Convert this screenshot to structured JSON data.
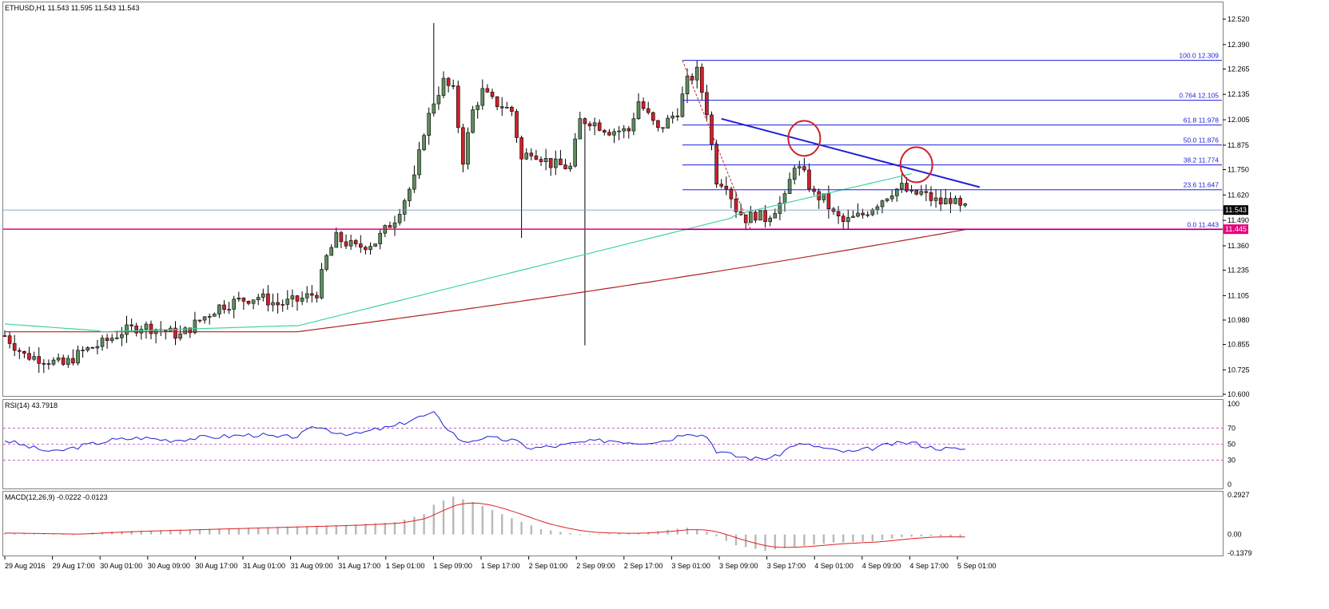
{
  "main_header": "ETHUSD,H1  11.543 11.595 11.543 11.543",
  "rsi_header": "RSI(14) 43.7918",
  "macd_header": "MACD(12,26,9) -0.0222 -0.0123",
  "colors": {
    "bull": "#5e8c5e",
    "bear": "#d0202a",
    "ma_fast": "#3fd4a0",
    "ma_slow": "#b22222",
    "fib": "#1f1fd8",
    "trend": "#1f1fd8",
    "support": "#e6007e",
    "circle": "#d0202a",
    "rsi": "#1f1fd8",
    "macd_hist": "#b8b8b8",
    "macd_signal": "#e02020"
  },
  "chart_data": [
    {
      "name": "price",
      "type": "candlestick",
      "ylim": [
        10.6,
        12.59
      ],
      "y_ticks": [
        "12.520",
        "12.390",
        "12.265",
        "12.135",
        "12.005",
        "11.875",
        "11.750",
        "11.620",
        "11.490",
        "11.360",
        "11.235",
        "11.105",
        "10.980",
        "10.855",
        "10.725",
        "10.600"
      ],
      "x_tick_labels": [
        "29 Aug 2016",
        "29 Aug 17:00",
        "30 Aug 01:00",
        "30 Aug 09:00",
        "30 Aug 17:00",
        "31 Aug 01:00",
        "31 Aug 09:00",
        "31 Aug 17:00",
        "1 Sep 01:00",
        "1 Sep 09:00",
        "1 Sep 17:00",
        "2 Sep 01:00",
        "2 Sep 09:00",
        "2 Sep 17:00",
        "3 Sep 01:00",
        "3 Sep 09:00",
        "3 Sep 17:00",
        "4 Sep 01:00",
        "4 Sep 09:00",
        "4 Sep 17:00",
        "5 Sep 01:00"
      ],
      "current_price": "11.543",
      "support_level": "11.445",
      "fib_levels": [
        {
          "pct": "100.0",
          "price": "12.309"
        },
        {
          "pct": "0.764",
          "price": "12.105"
        },
        {
          "pct": "61.8",
          "price": "11.978"
        },
        {
          "pct": "50.0",
          "price": "11.876"
        },
        {
          "pct": "38.2",
          "price": "11.774"
        },
        {
          "pct": "23.6",
          "price": "11.647"
        },
        {
          "pct": "0.0",
          "price": "11.443"
        }
      ],
      "trend_line": [
        [
          12.01,
          11.66
        ]
      ],
      "moving_averages": [
        "fast",
        "slow"
      ],
      "grid": false
    },
    {
      "name": "rsi",
      "type": "line",
      "ylim": [
        0,
        100
      ],
      "y_ticks": [
        "100",
        "70",
        "50",
        "30",
        "0"
      ],
      "levels": [
        70,
        50,
        30
      ],
      "last_value": 43.7918
    },
    {
      "name": "macd",
      "type": "bar",
      "y_ticks": [
        "0.2927",
        "0.00",
        "-0.1379"
      ],
      "ylim": [
        -0.1379,
        0.2927
      ],
      "last_macd": -0.0222,
      "last_signal": -0.0123
    }
  ]
}
